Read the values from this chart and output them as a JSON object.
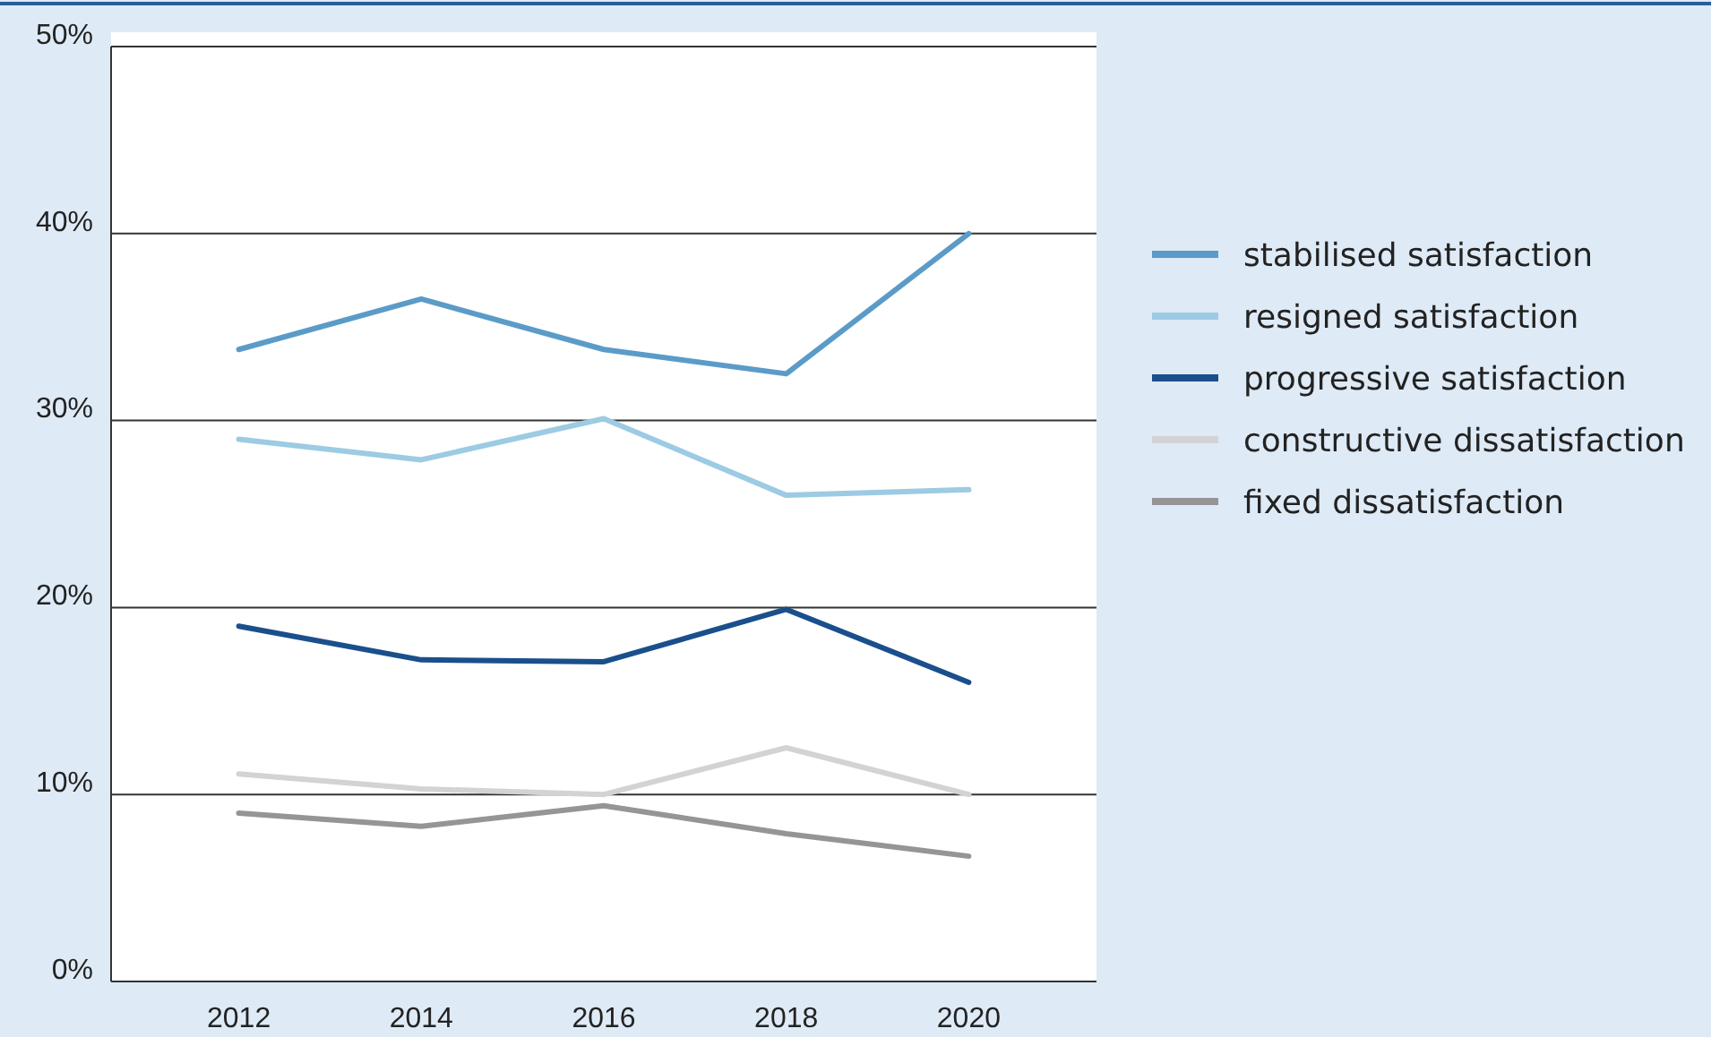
{
  "chart_data": {
    "type": "line",
    "x": [
      2012,
      2014,
      2016,
      2018,
      2020
    ],
    "xlim": [
      2010.6,
      2021.4
    ],
    "xticks": [
      2012,
      2014,
      2016,
      2018,
      2020
    ],
    "ylim": [
      0,
      50
    ],
    "yticks": [
      {
        "value": 0,
        "label": "0%"
      },
      {
        "value": 10,
        "label": "10%"
      },
      {
        "value": 20,
        "label": "20%"
      },
      {
        "value": 30,
        "label": "30%"
      },
      {
        "value": 40,
        "label": "40%"
      },
      {
        "value": 50,
        "label": "50%"
      }
    ],
    "grid": "y",
    "legend": "right",
    "marker": "none",
    "line_style": "solid",
    "series": [
      {
        "name": "stabilised satisfaction",
        "color": "#5b9bc8",
        "values": [
          33.8,
          36.5,
          33.8,
          32.5,
          40.0
        ]
      },
      {
        "name": "resigned satisfaction",
        "color": "#9ccbe3",
        "values": [
          29.0,
          27.9,
          30.1,
          26.0,
          26.3
        ]
      },
      {
        "name": "progressive satisfaction",
        "color": "#1a4f8c",
        "values": [
          19.0,
          17.2,
          17.1,
          19.9,
          16.0
        ]
      },
      {
        "name": "constructive dissatisfaction",
        "color": "#d3d3d3",
        "values": [
          11.1,
          10.3,
          10.0,
          12.5,
          10.0
        ]
      },
      {
        "name": "fixed dissatisfaction",
        "color": "#959595",
        "values": [
          9.0,
          8.3,
          9.4,
          7.9,
          6.7
        ]
      }
    ]
  }
}
